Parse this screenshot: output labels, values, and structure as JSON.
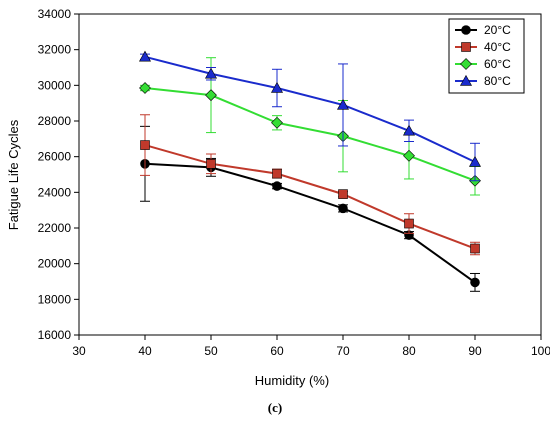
{
  "chart_data": {
    "type": "line",
    "xlabel": "Humidity (%)",
    "ylabel": "Fatigue Life Cycles",
    "xlim": [
      30,
      100
    ],
    "ylim": [
      16000,
      34000
    ],
    "xticks": [
      30,
      40,
      50,
      60,
      70,
      80,
      90,
      100
    ],
    "yticks": [
      16000,
      18000,
      20000,
      22000,
      24000,
      26000,
      28000,
      30000,
      32000,
      34000
    ],
    "grid": false,
    "legend_position": "top-right",
    "x": [
      40,
      50,
      60,
      70,
      80,
      90
    ],
    "series": [
      {
        "name": "20°C",
        "marker": "circle",
        "color": "#000000",
        "values": [
          25600,
          25400,
          24350,
          23100,
          21600,
          18950
        ],
        "error": [
          2100,
          500,
          150,
          200,
          200,
          500
        ]
      },
      {
        "name": "40°C",
        "marker": "square",
        "color": "#c0392b",
        "values": [
          26650,
          25600,
          25050,
          23900,
          22250,
          20850
        ],
        "error": [
          1700,
          550,
          250,
          150,
          550,
          350
        ]
      },
      {
        "name": "60°C",
        "marker": "diamond",
        "color": "#33dd33",
        "values": [
          29850,
          29450,
          27900,
          27150,
          26050,
          24650
        ],
        "error": [
          150,
          2100,
          400,
          2000,
          1300,
          800
        ]
      },
      {
        "name": "80°C",
        "marker": "triangle",
        "color": "#1a2bcc",
        "values": [
          31600,
          30650,
          29850,
          28900,
          27450,
          25700
        ],
        "error": [
          150,
          350,
          1050,
          2300,
          600,
          1050
        ]
      }
    ]
  },
  "caption": "(c)"
}
